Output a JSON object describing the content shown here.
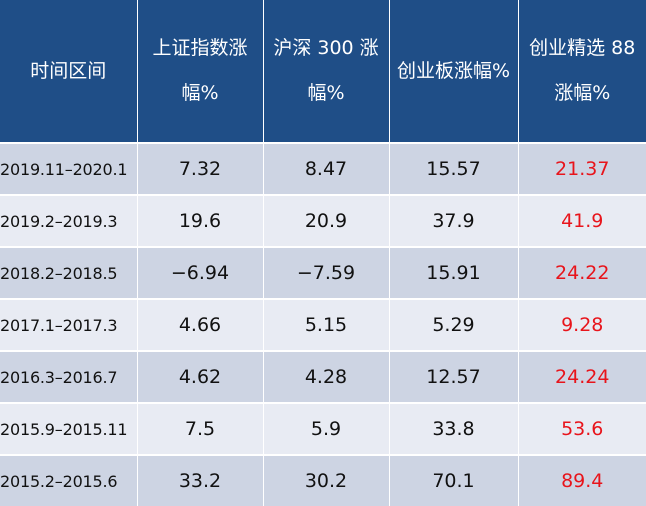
{
  "header": {
    "col0": "时间区间",
    "col1": "上证指数涨幅%",
    "col2": "沪深 300 涨幅%",
    "col3": "创业板涨幅%",
    "col4": "创业精选 88 涨幅%"
  },
  "rows": [
    {
      "period": "2019.11–2020.1",
      "shanghai": "7.32",
      "hs300": "8.47",
      "chinext": "15.57",
      "select88": "21.37"
    },
    {
      "period": "2019.2–2019.3",
      "shanghai": "19.6",
      "hs300": "20.9",
      "chinext": "37.9",
      "select88": "41.9"
    },
    {
      "period": "2018.2–2018.5",
      "shanghai": "−6.94",
      "hs300": "−7.59",
      "chinext": "15.91",
      "select88": "24.22"
    },
    {
      "period": "2017.1–2017.3",
      "shanghai": "4.66",
      "hs300": "5.15",
      "chinext": "5.29",
      "select88": "9.28"
    },
    {
      "period": "2016.3–2016.7",
      "shanghai": "4.62",
      "hs300": "4.28",
      "chinext": "12.57",
      "select88": "24.24"
    },
    {
      "period": "2015.9–2015.11",
      "shanghai": "7.5",
      "hs300": "5.9",
      "chinext": "33.8",
      "select88": "53.6"
    },
    {
      "period": "2015.2–2015.6",
      "shanghai": "33.2",
      "hs300": "30.2",
      "chinext": "70.1",
      "select88": "89.4"
    }
  ],
  "colors": {
    "header_bg": "#1f4e87",
    "row_odd": "#cdd4e3",
    "row_even": "#e8ebf3",
    "highlight_text": "#e8141b"
  }
}
